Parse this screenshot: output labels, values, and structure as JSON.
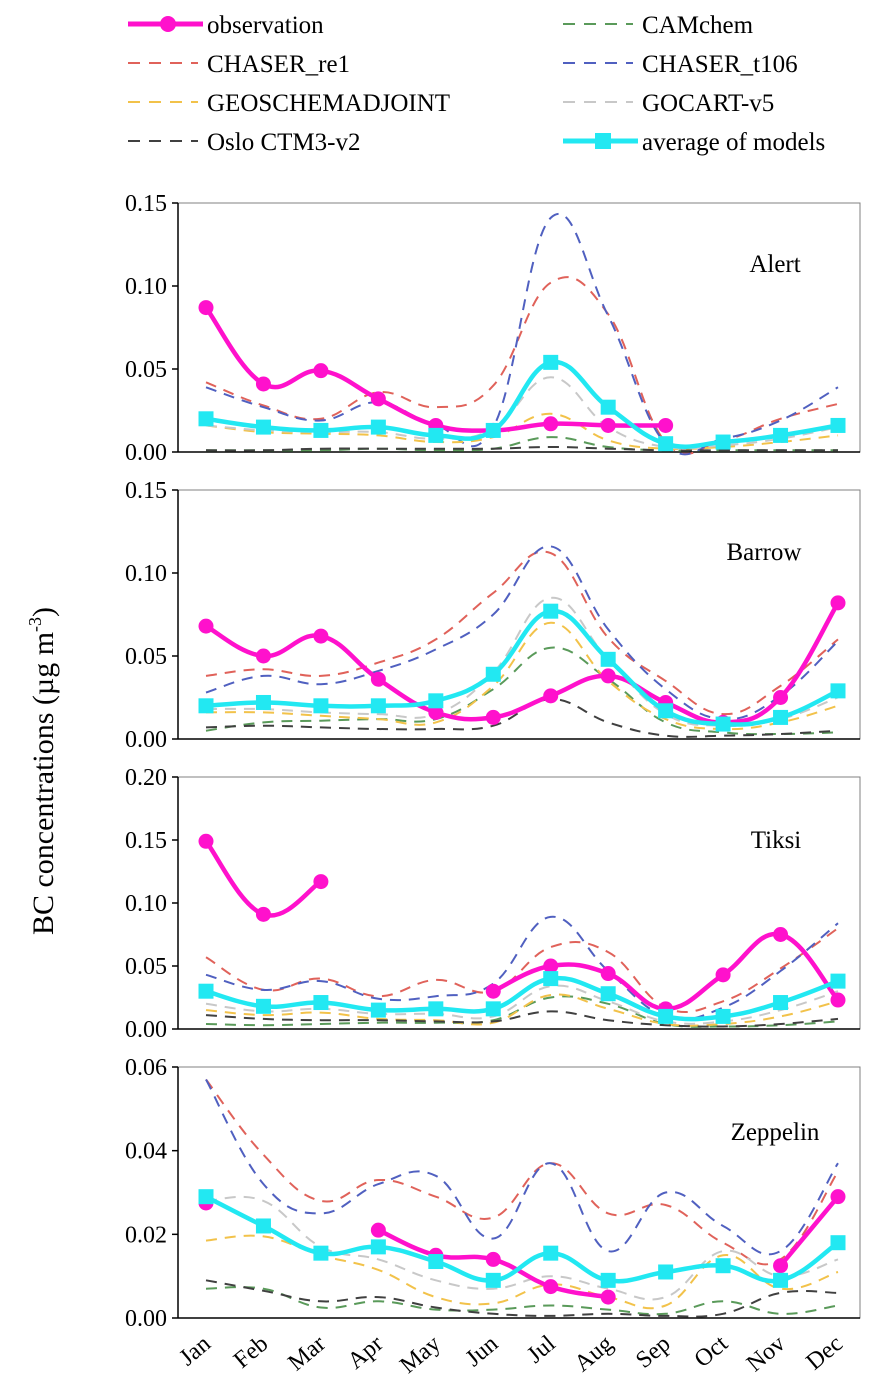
{
  "figure": {
    "ylabel": "BC concentrations (µg m",
    "ylabel_sup": "-3",
    "ylabel_close": ")"
  },
  "colors": {
    "observation": "#ff11cc",
    "CAMchem": "#5a9a5a",
    "CHASER_re1": "#e0625a",
    "CHASER_t106": "#5060c0",
    "GEOSCHEMADJOINT": "#f2c24a",
    "GOCART-v5": "#c8c8c8",
    "Oslo CTM3-v2": "#404040",
    "average of models": "#22e8f2"
  },
  "legend": [
    {
      "key": "observation",
      "label": "observation",
      "style": "solid-circle"
    },
    {
      "key": "CAMchem",
      "label": "CAMchem",
      "style": "dashed"
    },
    {
      "key": "CHASER_re1",
      "label": "CHASER_re1",
      "style": "dashed"
    },
    {
      "key": "CHASER_t106",
      "label": "CHASER_t106",
      "style": "dashed"
    },
    {
      "key": "GEOSCHEMADJOINT",
      "label": "GEOSCHEMADJOINT",
      "style": "dashed"
    },
    {
      "key": "GOCART-v5",
      "label": "GOCART-v5",
      "style": "dashed"
    },
    {
      "key": "Oslo CTM3-v2",
      "label": "Oslo CTM3-v2",
      "style": "dashed"
    },
    {
      "key": "average of models",
      "label": "average of models",
      "style": "solid-square"
    }
  ],
  "chart_data": [
    {
      "type": "line",
      "station": "Alert",
      "categories": [
        "Jan",
        "Feb",
        "Mar",
        "Apr",
        "May",
        "Jun",
        "Jul",
        "Aug",
        "Sep",
        "Oct",
        "Nov",
        "Dec"
      ],
      "ylim": [
        0,
        0.15
      ],
      "yticks": [
        "0.00",
        "0.05",
        "0.10",
        "0.15"
      ],
      "series": [
        {
          "name": "observation",
          "values": [
            0.087,
            0.041,
            0.049,
            0.032,
            0.016,
            0.013,
            0.017,
            0.016,
            0.016,
            null,
            null,
            null
          ]
        },
        {
          "name": "CAMchem",
          "values": [
            0.001,
            0.001,
            0.001,
            0.002,
            0.001,
            0.002,
            0.009,
            0.003,
            0.001,
            0.001,
            0.001,
            0.001
          ]
        },
        {
          "name": "CHASER_re1",
          "values": [
            0.042,
            0.028,
            0.02,
            0.036,
            0.027,
            0.04,
            0.102,
            0.083,
            0.006,
            0.007,
            0.02,
            0.029
          ]
        },
        {
          "name": "CHASER_t106",
          "values": [
            0.039,
            0.027,
            0.019,
            0.03,
            0.016,
            0.015,
            0.141,
            0.082,
            0.005,
            0.008,
            0.019,
            0.039
          ]
        },
        {
          "name": "GEOSCHEMADJOINT",
          "values": [
            0.016,
            0.012,
            0.011,
            0.01,
            0.006,
            0.009,
            0.023,
            0.007,
            0.002,
            0.003,
            0.006,
            0.01
          ]
        },
        {
          "name": "GOCART-v5",
          "values": [
            0.016,
            0.013,
            0.012,
            0.012,
            0.008,
            0.014,
            0.045,
            0.015,
            0.003,
            0.004,
            0.008,
            0.015
          ]
        },
        {
          "name": "Oslo CTM3-v2",
          "values": [
            0.001,
            0.001,
            0.002,
            0.002,
            0.002,
            0.002,
            0.003,
            0.002,
            0.001,
            0.001,
            0.001,
            0.001
          ]
        },
        {
          "name": "average of models",
          "values": [
            0.02,
            0.015,
            0.013,
            0.015,
            0.01,
            0.013,
            0.054,
            0.027,
            0.005,
            0.006,
            0.01,
            0.016
          ]
        }
      ]
    },
    {
      "type": "line",
      "station": "Barrow",
      "categories": [
        "Jan",
        "Feb",
        "Mar",
        "Apr",
        "May",
        "Jun",
        "Jul",
        "Aug",
        "Sep",
        "Oct",
        "Nov",
        "Dec"
      ],
      "ylim": [
        0,
        0.15
      ],
      "yticks": [
        "0.00",
        "0.05",
        "0.10",
        "0.15"
      ],
      "series": [
        {
          "name": "observation",
          "values": [
            0.068,
            0.05,
            0.062,
            0.036,
            0.016,
            0.013,
            0.026,
            0.038,
            0.022,
            0.01,
            0.025,
            0.082
          ]
        },
        {
          "name": "CAMchem",
          "values": [
            0.005,
            0.01,
            0.011,
            0.012,
            0.012,
            0.03,
            0.055,
            0.036,
            0.01,
            0.004,
            0.003,
            0.004
          ]
        },
        {
          "name": "CHASER_re1",
          "values": [
            0.038,
            0.042,
            0.038,
            0.046,
            0.06,
            0.088,
            0.112,
            0.061,
            0.035,
            0.015,
            0.032,
            0.06
          ]
        },
        {
          "name": "CHASER_t106",
          "values": [
            0.028,
            0.038,
            0.033,
            0.041,
            0.054,
            0.075,
            0.116,
            0.066,
            0.03,
            0.012,
            0.026,
            0.059
          ]
        },
        {
          "name": "GEOSCHEMADJOINT",
          "values": [
            0.016,
            0.016,
            0.014,
            0.012,
            0.01,
            0.032,
            0.07,
            0.035,
            0.012,
            0.006,
            0.01,
            0.02
          ]
        },
        {
          "name": "GOCART-v5",
          "values": [
            0.018,
            0.018,
            0.016,
            0.015,
            0.015,
            0.04,
            0.085,
            0.048,
            0.015,
            0.008,
            0.012,
            0.025
          ]
        },
        {
          "name": "Oslo CTM3-v2",
          "values": [
            0.007,
            0.008,
            0.007,
            0.006,
            0.006,
            0.008,
            0.024,
            0.01,
            0.002,
            0.002,
            0.003,
            0.005
          ]
        },
        {
          "name": "average of models",
          "values": [
            0.02,
            0.022,
            0.02,
            0.02,
            0.023,
            0.039,
            0.077,
            0.048,
            0.017,
            0.009,
            0.013,
            0.029
          ]
        }
      ]
    },
    {
      "type": "line",
      "station": "Tiksi",
      "categories": [
        "Jan",
        "Feb",
        "Mar",
        "Apr",
        "May",
        "Jun",
        "Jul",
        "Aug",
        "Sep",
        "Oct",
        "Nov",
        "Dec"
      ],
      "ylim": [
        0,
        0.2
      ],
      "yticks": [
        "0.00",
        "0.05",
        "0.10",
        "0.15",
        "0.20"
      ],
      "series": [
        {
          "name": "observation",
          "values": [
            0.149,
            0.091,
            0.117,
            null,
            null,
            0.03,
            0.05,
            0.044,
            0.016,
            0.043,
            0.075,
            0.023
          ]
        },
        {
          "name": "CAMchem",
          "values": [
            0.004,
            0.003,
            0.004,
            0.005,
            0.005,
            0.007,
            0.025,
            0.02,
            0.004,
            0.002,
            0.003,
            0.006
          ]
        },
        {
          "name": "CHASER_re1",
          "values": [
            0.057,
            0.031,
            0.04,
            0.026,
            0.039,
            0.03,
            0.065,
            0.061,
            0.017,
            0.022,
            0.048,
            0.08
          ]
        },
        {
          "name": "CHASER_t106",
          "values": [
            0.043,
            0.031,
            0.038,
            0.024,
            0.026,
            0.036,
            0.089,
            0.046,
            0.01,
            0.017,
            0.046,
            0.084
          ]
        },
        {
          "name": "GEOSCHEMADJOINT",
          "values": [
            0.015,
            0.011,
            0.013,
            0.008,
            0.007,
            0.005,
            0.027,
            0.016,
            0.004,
            0.004,
            0.01,
            0.022
          ]
        },
        {
          "name": "GOCART-v5",
          "values": [
            0.02,
            0.014,
            0.016,
            0.012,
            0.012,
            0.01,
            0.034,
            0.022,
            0.006,
            0.006,
            0.015,
            0.03
          ]
        },
        {
          "name": "Oslo CTM3-v2",
          "values": [
            0.011,
            0.008,
            0.007,
            0.007,
            0.006,
            0.006,
            0.014,
            0.007,
            0.003,
            0.002,
            0.004,
            0.008
          ]
        },
        {
          "name": "average of models",
          "values": [
            0.03,
            0.018,
            0.021,
            0.015,
            0.016,
            0.016,
            0.04,
            0.028,
            0.01,
            0.01,
            0.021,
            0.038
          ]
        }
      ]
    },
    {
      "type": "line",
      "station": "Zeppelin",
      "categories": [
        "Jan",
        "Feb",
        "Mar",
        "Apr",
        "May",
        "Jun",
        "Jul",
        "Aug",
        "Sep",
        "Oct",
        "Nov",
        "Dec"
      ],
      "ylim": [
        0,
        0.06
      ],
      "yticks": [
        "0.00",
        "0.02",
        "0.04",
        "0.06"
      ],
      "series": [
        {
          "name": "observation",
          "values": [
            0.0275,
            null,
            null,
            0.021,
            0.015,
            0.014,
            0.0075,
            0.005,
            null,
            null,
            0.0125,
            0.029
          ]
        },
        {
          "name": "CAMchem",
          "values": [
            0.007,
            0.007,
            0.0025,
            0.004,
            0.002,
            0.002,
            0.003,
            0.002,
            0.001,
            0.004,
            0.001,
            0.003
          ]
        },
        {
          "name": "CHASER_re1",
          "values": [
            0.057,
            0.039,
            0.028,
            0.033,
            0.029,
            0.024,
            0.037,
            0.025,
            0.027,
            0.018,
            0.014,
            0.035
          ]
        },
        {
          "name": "CHASER_t106",
          "values": [
            0.057,
            0.032,
            0.025,
            0.032,
            0.034,
            0.019,
            0.037,
            0.016,
            0.03,
            0.022,
            0.016,
            0.037
          ]
        },
        {
          "name": "GEOSCHEMADJOINT",
          "values": [
            0.0185,
            0.0195,
            0.015,
            0.0115,
            0.005,
            0.0035,
            0.008,
            0.005,
            0.003,
            0.015,
            0.007,
            0.011
          ]
        },
        {
          "name": "GOCART-v5",
          "values": [
            0.028,
            0.028,
            0.017,
            0.014,
            0.009,
            0.007,
            0.01,
            0.007,
            0.005,
            0.016,
            0.01,
            0.014
          ]
        },
        {
          "name": "Oslo CTM3-v2",
          "values": [
            0.009,
            0.0065,
            0.004,
            0.005,
            0.0025,
            0.001,
            0.0005,
            0.001,
            0.0005,
            0.001,
            0.006,
            0.006
          ]
        },
        {
          "name": "average of models",
          "values": [
            0.029,
            0.022,
            0.0155,
            0.017,
            0.0135,
            0.009,
            0.0155,
            0.009,
            0.011,
            0.0125,
            0.009,
            0.018
          ]
        }
      ]
    }
  ]
}
